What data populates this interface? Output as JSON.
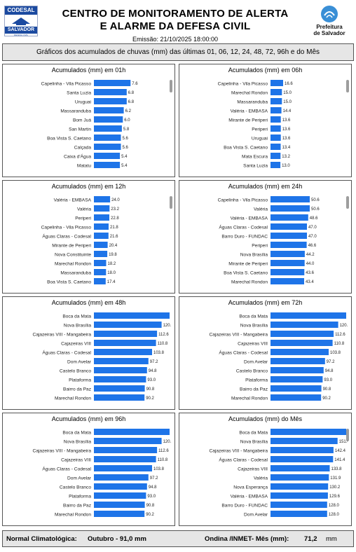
{
  "header": {
    "logo_left_top": "CODESAL",
    "logo_left_bottom": "SALVADOR",
    "logo_left_small": "DEFESA CIVIL",
    "title_line1": "CENTRO DE MONITORAMENTO DE ALERTA",
    "title_line2": "E ALARME DA DEFESA CIVIL",
    "emissao": "Emissão: 21/10/2025 18:00:00",
    "logo_right_line1": "Prefeitura",
    "logo_right_line2": "de Salvador"
  },
  "subtitle": "Gráficos dos acumulados de chuvas (mm) das últimas 01, 06, 12, 24, 48, 72, 96h e do Mês",
  "colors": {
    "bar": "#1e74e8",
    "bar_label": "#222222",
    "panel_border": "#555555",
    "bar_background": "#e6e6e6"
  },
  "footer": {
    "normal_label": "Normal Climatológica:",
    "normal_value": "Outubro - 91,0 mm",
    "ondina_label": "Ondina /INMET- Mês (mm):",
    "ondina_value": "71,2",
    "ondina_unit": "mm"
  },
  "chart_data": [
    {
      "type": "bar",
      "orientation": "horizontal",
      "title": "Acumulados (mm) em 01h",
      "xlim": [
        0,
        16
      ],
      "categories": [
        "Capelinha - Vila Picasso",
        "Santa Luzia",
        "Uruguai",
        "Massaranduba",
        "Bom Juá",
        "San Martin",
        "Boa Vista S. Caetano",
        "Calçada",
        "Caixa d'Água",
        "Matatu"
      ],
      "values": [
        7.6,
        6.8,
        6.8,
        6.2,
        6.0,
        5.8,
        5.6,
        5.6,
        5.4,
        5.4
      ],
      "value_labels": [
        "7.6",
        "6.8",
        "6.8",
        "6.2",
        "6.0",
        "5.8",
        "5.6",
        "5.6",
        "5.4",
        "5.4"
      ]
    },
    {
      "type": "bar",
      "orientation": "horizontal",
      "title": "Acumulados (mm) em 06h",
      "xlim": [
        0,
        16.6
      ],
      "categories": [
        "Capelinha - Vila Picasso",
        "Marechal Rondon",
        "Massaranduba",
        "Valéria - EMBASA",
        "Mirante de Periperi",
        "Periperi",
        "Uruguai",
        "Boa Vista S. Caetano",
        "Mata Escura",
        "Santa Luzia"
      ],
      "values": [
        16.6,
        15.0,
        15.0,
        14.4,
        13.6,
        13.6,
        13.6,
        13.4,
        13.2,
        13.0
      ],
      "value_labels": [
        "16.6",
        "15.0",
        "15.0",
        "14.4",
        "13.6",
        "13.6",
        "13.6",
        "13.4",
        "13.2",
        "13.0"
      ]
    },
    {
      "type": "bar",
      "orientation": "horizontal",
      "title": "Acumulados (mm) em 12h",
      "xlim": [
        0,
        27
      ],
      "categories": [
        "Valéria - EMBASA",
        "Valéria",
        "Periperi",
        "Capelinha - Vila Picasso",
        "Águas Claras - Codesal",
        "Mirante de Periperi",
        "Nova Constituinte",
        "Marechal Rondon",
        "Massaranduba",
        "Boa Vista S. Caetano"
      ],
      "values": [
        24.0,
        23.2,
        22.8,
        21.8,
        21.6,
        20.4,
        19.8,
        18.2,
        18.0,
        17.4
      ],
      "value_labels": [
        "24.0",
        "23.2",
        "22.8",
        "21.8",
        "21.6",
        "20.4",
        "19.8",
        "18.2",
        "18.0",
        "17.4"
      ]
    },
    {
      "type": "bar",
      "orientation": "horizontal",
      "title": "Acumulados (mm) em 24h",
      "xlim": [
        0,
        50.6
      ],
      "categories": [
        "Capelinha - Vila Picasso",
        "Valéria",
        "Valéria - EMBASA",
        "Águas Claras - Codesal",
        "Barro Duro - FUNDAC",
        "Periperi",
        "Nova Brasília",
        "Mirante de Periperi",
        "Boa Vista S. Caetano",
        "Marechal Rondon"
      ],
      "values": [
        50.6,
        50.6,
        48.6,
        47.0,
        47.0,
        46.6,
        44.2,
        44.0,
        43.6,
        43.4
      ],
      "value_labels": [
        "50.6",
        "50.6",
        "48.6",
        "47.0",
        "47.0",
        "46.6",
        "44.2",
        "44.0",
        "43.6",
        "43.4"
      ]
    },
    {
      "type": "bar",
      "orientation": "horizontal",
      "title": "Acumulados (mm) em 48h",
      "xlim": [
        0,
        135
      ],
      "categories": [
        "Boca da Mata",
        "Nova Brasília",
        "Cajazeiras VIII - Mangabeira",
        "Cajazeiras VIII",
        "Águas Claras - Codesal",
        "Dom Avelar",
        "Castelo Branco",
        "Plataforma",
        "Bairro da Paz",
        "Marechal Rondon"
      ],
      "values": [
        135.0,
        120.8,
        112.6,
        110.8,
        103.8,
        97.2,
        94.8,
        93.0,
        90.8,
        90.2
      ],
      "value_labels": [
        "135.0",
        "120.8",
        "112.6",
        "110.8",
        "103.8",
        "97.2",
        "94.8",
        "93.0",
        "90.8",
        "90.2"
      ]
    },
    {
      "type": "bar",
      "orientation": "horizontal",
      "title": "Acumulados (mm) em 72h",
      "xlim": [
        0,
        135
      ],
      "categories": [
        "Boca da Mata",
        "Nova Brasília",
        "Cajazeiras VIII - Mangabeira",
        "Cajazeiras VIII",
        "Águas Claras - Codesal",
        "Dom Avelar",
        "Castelo Branco",
        "Plataforma",
        "Bairro da Paz",
        "Marechal Rondon"
      ],
      "values": [
        135.0,
        120.8,
        112.6,
        110.8,
        103.8,
        97.2,
        94.8,
        93.0,
        90.8,
        90.2
      ],
      "value_labels": [
        "135.0",
        "120.8",
        "112.6",
        "110.8",
        "103.8",
        "97.2",
        "94.8",
        "93.0",
        "90.8",
        "90.2"
      ]
    },
    {
      "type": "bar",
      "orientation": "horizontal",
      "title": "Acumulados (mm) em 96h",
      "xlim": [
        0,
        135
      ],
      "categories": [
        "Boca da Mata",
        "Nova Brasília",
        "Cajazeiras VIII - Mangabeira",
        "Cajazeiras VIII",
        "Águas Claras - Codesal",
        "Dom Avelar",
        "Castelo Branco",
        "Plataforma",
        "Bairro da Paz",
        "Marechal Rondon"
      ],
      "values": [
        135.0,
        120.8,
        112.6,
        110.8,
        103.8,
        97.2,
        94.8,
        93.0,
        90.8,
        90.2
      ],
      "value_labels": [
        "135.0",
        "120.8",
        "112.6",
        "110.8",
        "103.8",
        "97.2",
        "94.8",
        "93.0",
        "90.8",
        "90.2"
      ]
    },
    {
      "type": "bar",
      "orientation": "horizontal",
      "title": "Acumulados (mm) do Mês",
      "xlim": [
        0,
        171
      ],
      "categories": [
        "Boca da Mata",
        "Nova Brasília",
        "Cajazeiras VIII - Mangabeira",
        "Águas Claras - Codesal",
        "Cajazeiras VIII",
        "Valéria",
        "Nova Esperança",
        "Valéria - EMBASA",
        "Barro Duro - FUNDAC",
        "Dom Avelar"
      ],
      "values": [
        171.0,
        151.6,
        142.4,
        141.4,
        133.8,
        131.9,
        130.2,
        129.6,
        128.0,
        128.0
      ],
      "value_labels": [
        "171.0",
        "151.6",
        "142.4",
        "141.4",
        "133.8",
        "131.9",
        "130.2",
        "129.6",
        "128.0",
        "128.0"
      ]
    }
  ]
}
